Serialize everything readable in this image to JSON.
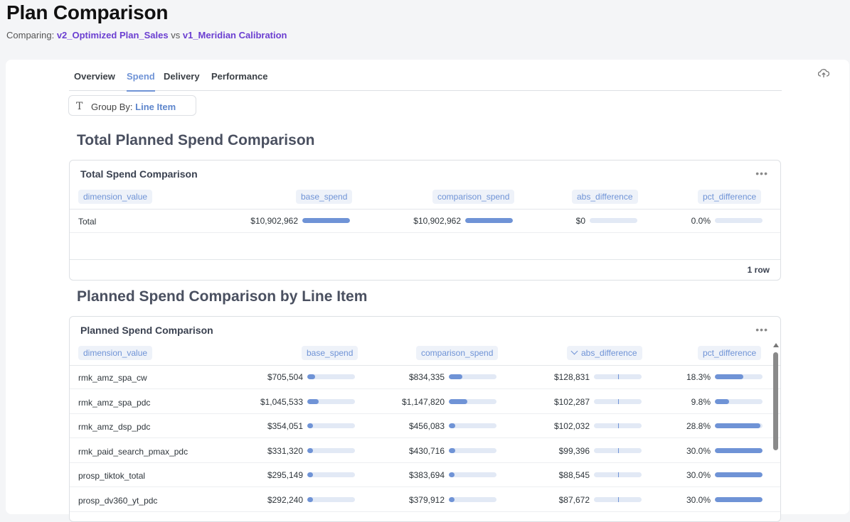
{
  "header": {
    "title": "Plan Comparison",
    "comparing_label": "Comparing: ",
    "plan_a": "v2_Optimized Plan_Sales",
    "vs": " vs ",
    "plan_b": "v1_Meridian Calibration"
  },
  "tabs": [
    {
      "label": "Overview",
      "active": false
    },
    {
      "label": "Spend",
      "active": true
    },
    {
      "label": "Delivery",
      "active": false
    },
    {
      "label": "Performance",
      "active": false
    }
  ],
  "groupby": {
    "label": "Group By: ",
    "value": "Line Item"
  },
  "section1": {
    "title": "Total Planned Spend Comparison"
  },
  "section2": {
    "title": "Planned Spend Comparison by Line Item"
  },
  "columns": [
    "dimension_value",
    "base_spend",
    "comparison_spend",
    "abs_difference",
    "pct_difference"
  ],
  "total_card": {
    "title": "Total Spend Comparison",
    "rows": [
      {
        "dimension_value": "Total",
        "base_spend": "$10,902,962",
        "base_frac": 1.0,
        "comparison_spend": "$10,902,962",
        "comp_frac": 1.0,
        "abs_difference": "$0",
        "abs_frac": 0,
        "pct_difference": "0.0%",
        "pct_frac": 0
      }
    ],
    "row_count": "1 row"
  },
  "line_card": {
    "title": "Planned Spend Comparison",
    "rows": [
      {
        "dimension_value": "rmk_amz_spa_cw",
        "base_spend": "$705,504",
        "base_frac": 0.17,
        "comparison_spend": "$834,335",
        "comp_frac": 0.28,
        "abs_difference": "$128,831",
        "abs_frac": 0.01,
        "pct_difference": "18.3%",
        "pct_frac": 0.6
      },
      {
        "dimension_value": "rmk_amz_spa_pdc",
        "base_spend": "$1,045,533",
        "base_frac": 0.24,
        "comparison_spend": "$1,147,820",
        "comp_frac": 0.39,
        "abs_difference": "$102,287",
        "abs_frac": 0.01,
        "pct_difference": "9.8%",
        "pct_frac": 0.3
      },
      {
        "dimension_value": "rmk_amz_dsp_pdc",
        "base_spend": "$354,051",
        "base_frac": 0.08,
        "comparison_spend": "$456,083",
        "comp_frac": 0.13,
        "abs_difference": "$102,032",
        "abs_frac": 0.01,
        "pct_difference": "28.8%",
        "pct_frac": 0.96
      },
      {
        "dimension_value": "rmk_paid_search_pmax_pdc",
        "base_spend": "$331,320",
        "base_frac": 0.08,
        "comparison_spend": "$430,716",
        "comp_frac": 0.13,
        "abs_difference": "$99,396",
        "abs_frac": 0.01,
        "pct_difference": "30.0%",
        "pct_frac": 1.0
      },
      {
        "dimension_value": "prosp_tiktok_total",
        "base_spend": "$295,149",
        "base_frac": 0.07,
        "comparison_spend": "$383,694",
        "comp_frac": 0.12,
        "abs_difference": "$88,545",
        "abs_frac": 0.01,
        "pct_difference": "30.0%",
        "pct_frac": 1.0
      },
      {
        "dimension_value": "prosp_dv360_yt_pdc",
        "base_spend": "$292,240",
        "base_frac": 0.07,
        "comparison_spend": "$379,912",
        "comp_frac": 0.12,
        "abs_difference": "$87,672",
        "abs_frac": 0.01,
        "pct_difference": "30.0%",
        "pct_frac": 1.0
      }
    ]
  },
  "colors": {
    "accent": "#6f93d6",
    "plan_link": "#6b3fd1"
  },
  "icons": {
    "upload": "cloud-upload-icon",
    "more": "more-horizontal-icon",
    "text": "text-type-icon",
    "sort": "chevron-down-icon"
  }
}
